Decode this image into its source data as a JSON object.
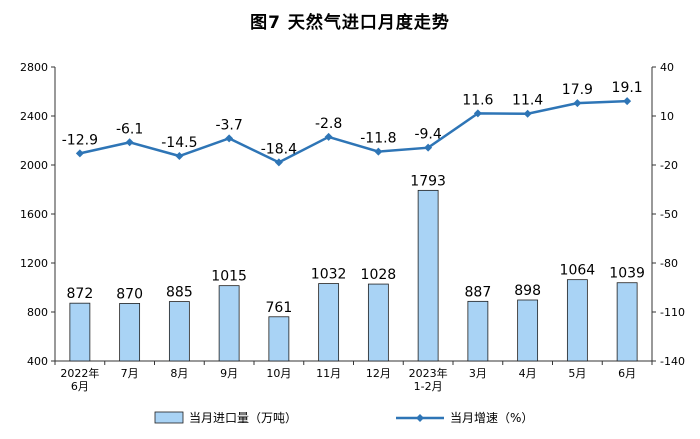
{
  "chart_data": {
    "type": "bar+line",
    "title": "图7  天然气进口月度走势",
    "categories": [
      "2022年\n6月",
      "7月",
      "8月",
      "9月",
      "10月",
      "11月",
      "12月",
      "2023年\n1-2月",
      "3月",
      "4月",
      "5月",
      "6月"
    ],
    "series": [
      {
        "name": "当月进口量（万吨）",
        "type": "bar",
        "axis": "left",
        "values": [
          872,
          870,
          885,
          1015,
          761,
          1032,
          1028,
          1793,
          887,
          898,
          1064,
          1039
        ]
      },
      {
        "name": "当月增速（%）",
        "type": "line",
        "axis": "right",
        "values": [
          -12.9,
          -6.1,
          -14.5,
          -3.7,
          -18.4,
          -2.8,
          -11.8,
          -9.4,
          11.6,
          11.4,
          17.9,
          19.1
        ]
      }
    ],
    "y_left": {
      "min": 400,
      "max": 2800,
      "ticks": [
        400,
        800,
        1200,
        1600,
        2000,
        2400,
        2800
      ]
    },
    "y_right": {
      "min": -140,
      "max": 40,
      "ticks": [
        -140,
        -110,
        -80,
        -50,
        -20,
        10,
        40
      ]
    },
    "grid": false,
    "legend_position": "bottom",
    "colors": {
      "bar_fill": "#a9d3f5",
      "bar_stroke": "#1f1f1f",
      "line": "#2e75b6"
    }
  }
}
